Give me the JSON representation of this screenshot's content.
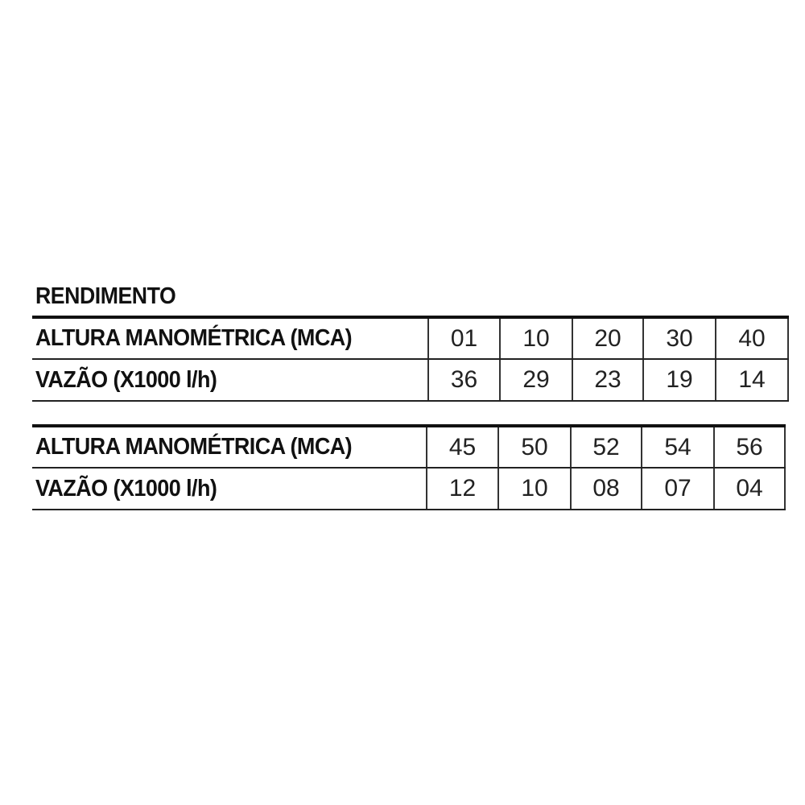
{
  "title": "RENDIMENTO",
  "tables": [
    {
      "rows": [
        {
          "label": "ALTURA MANOMÉTRICA (MCA)",
          "values": [
            "01",
            "10",
            "20",
            "30",
            "40"
          ]
        },
        {
          "label": "VAZÃO (X1000 l/h)",
          "values": [
            "36",
            "29",
            "23",
            "19",
            "14"
          ]
        }
      ]
    },
    {
      "rows": [
        {
          "label": "ALTURA MANOMÉTRICA (MCA)",
          "values": [
            "45",
            "50",
            "52",
            "54",
            "56"
          ]
        },
        {
          "label": "VAZÃO (X1000 l/h)",
          "values": [
            "12",
            "10",
            "08",
            "07",
            "04"
          ]
        }
      ]
    }
  ]
}
